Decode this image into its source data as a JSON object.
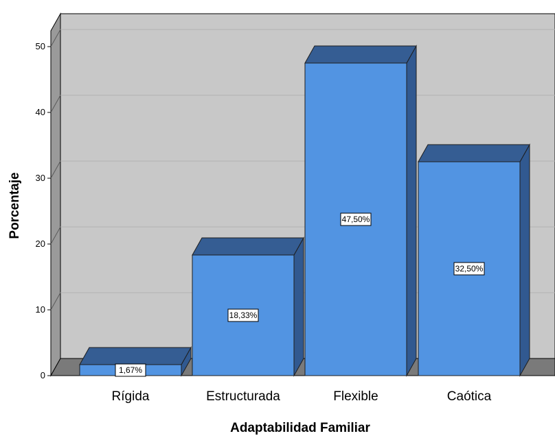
{
  "chart_data": {
    "type": "bar",
    "xlabel": "Adaptabilidad Familiar",
    "ylabel": "Porcentaje",
    "categories": [
      "Rígida",
      "Estructurada",
      "Flexible",
      "Caótica"
    ],
    "values": [
      1.67,
      18.33,
      47.5,
      32.5
    ],
    "data_labels": [
      "1,67%",
      "18,33%",
      "47,50%",
      "32,50%"
    ],
    "ylim": [
      0,
      55
    ],
    "yticks": [
      0,
      10,
      20,
      30,
      40,
      50
    ],
    "grid": true,
    "style": "3d",
    "colors": {
      "bar_front": "#5294e2",
      "bar_top": "#355d93",
      "bar_side": "#315990",
      "plot_background": "#c8c8c8",
      "floor": "#7a7a7a",
      "gridline": "#b2b2b2"
    }
  }
}
